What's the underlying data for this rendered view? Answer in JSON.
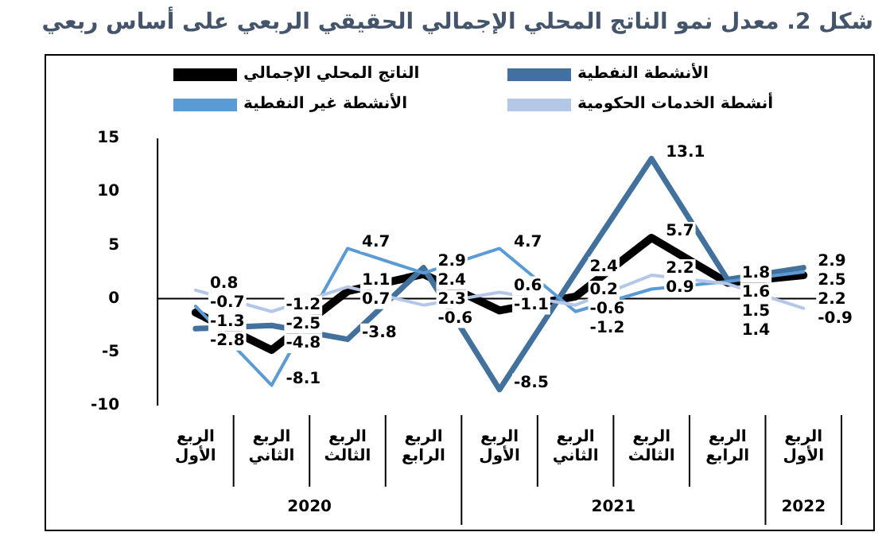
{
  "chart_data": {
    "type": "line",
    "title": "شكل 2. معدل نمو الناتج المحلي الإجمالي الحقيقي الربعي على أساس ربعي",
    "categories": [
      "الربع الأول",
      "الربع الثاني",
      "الربع الثالث",
      "الربع الرابع",
      "الربع الأول",
      "الربع الثاني",
      "الربع الثالث",
      "الربع الرابع",
      "الربع الأول"
    ],
    "annotations": [
      "2020",
      "2021",
      "2022"
    ],
    "series": [
      {
        "name": "الناتج المحلي الإجمالي",
        "color": "#000000",
        "values": [
          -1.3,
          -4.8,
          0.7,
          2.3,
          -1.1,
          0.2,
          5.7,
          1.5,
          2.2
        ]
      },
      {
        "name": "الأنشطة النفطية",
        "color": "#41719c",
        "values": [
          -2.8,
          -2.5,
          -3.8,
          2.9,
          -8.5,
          2.4,
          13.1,
          1.8,
          2.9
        ]
      },
      {
        "name": "الأنشطة غير النفطية",
        "color": "#5b9bd5",
        "values": [
          -0.7,
          -8.1,
          4.7,
          2.4,
          4.7,
          -1.2,
          0.9,
          1.6,
          2.5
        ]
      },
      {
        "name": "أنشطة الخدمات الحكومية",
        "color": "#b4c7e7",
        "values": [
          0.8,
          -1.2,
          1.1,
          -0.6,
          0.6,
          -0.6,
          2.2,
          1.4,
          -0.9
        ]
      }
    ],
    "ylim": [
      -10,
      15
    ],
    "yticks": [
      -10,
      -5,
      0,
      5,
      10,
      15
    ],
    "ref_lines": [
      {
        "axis": "y",
        "value": 0,
        "color": "#000000"
      }
    ],
    "grid": false,
    "legend": "top",
    "data_labels": true,
    "marker": "none",
    "line_style": "solid"
  }
}
